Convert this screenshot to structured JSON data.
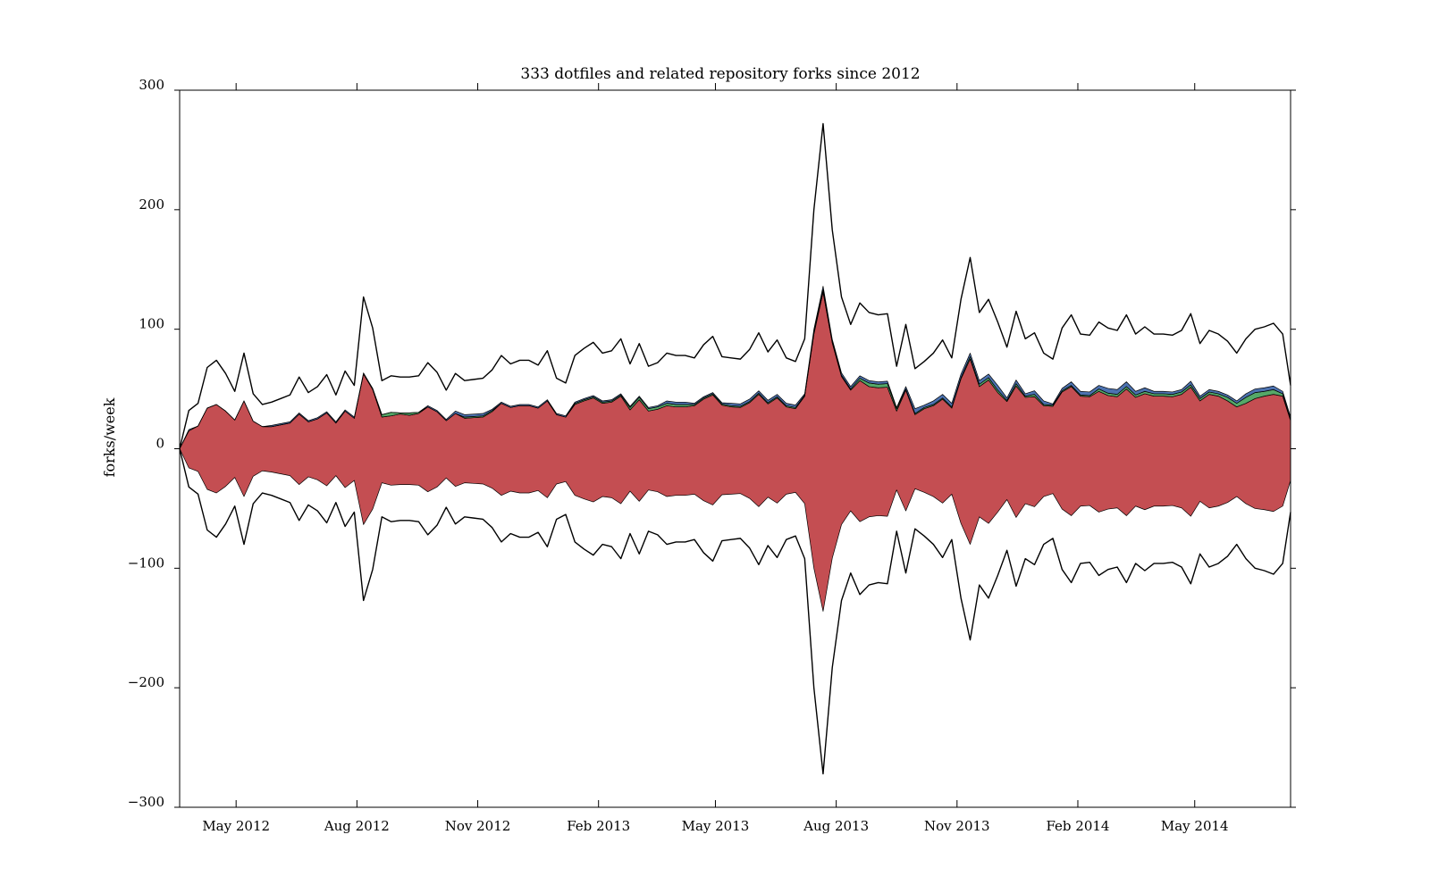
{
  "chart_data": {
    "type": "area",
    "subtype": "symmetric stream graph (stacked area mirrored about zero)",
    "title": "333 dotfiles and related repository forks since 2012",
    "xlabel": "",
    "ylabel": "forks/week",
    "ylim": [
      -300,
      300
    ],
    "yticks": [
      300,
      200,
      100,
      0,
      -100,
      -200,
      -300
    ],
    "ytick_labels": [
      "300",
      "200",
      "100",
      "0",
      "−100",
      "−200",
      "−300"
    ],
    "xlim": [
      "2012-03-19",
      "2014-07-13"
    ],
    "xticks": [
      "2012-05-01",
      "2012-08-01",
      "2012-11-01",
      "2013-02-01",
      "2013-05-01",
      "2013-08-01",
      "2013-11-01",
      "2014-02-01",
      "2014-05-01"
    ],
    "xtick_labels": [
      "May 2012",
      "Aug 2012",
      "Nov 2012",
      "Feb 2013",
      "May 2013",
      "Aug 2013",
      "Nov 2013",
      "Feb 2014",
      "May 2014"
    ],
    "grid": false,
    "legend": "none",
    "colors": {
      "major": "#c44e52",
      "minor_1": "#55a868",
      "minor_2": "#4c72b0",
      "outline": "#000000"
    },
    "x": [
      "2012-03-19",
      "2012-03-26",
      "2012-04-02",
      "2012-04-09",
      "2012-04-16",
      "2012-04-23",
      "2012-04-30",
      "2012-05-07",
      "2012-05-14",
      "2012-05-21",
      "2012-05-28",
      "2012-06-04",
      "2012-06-11",
      "2012-06-18",
      "2012-06-25",
      "2012-07-02",
      "2012-07-09",
      "2012-07-16",
      "2012-07-23",
      "2012-07-30",
      "2012-08-06",
      "2012-08-13",
      "2012-08-20",
      "2012-08-27",
      "2012-09-03",
      "2012-09-10",
      "2012-09-17",
      "2012-09-24",
      "2012-10-01",
      "2012-10-08",
      "2012-10-15",
      "2012-10-22",
      "2012-10-29",
      "2012-11-05",
      "2012-11-12",
      "2012-11-19",
      "2012-11-26",
      "2012-12-03",
      "2012-12-10",
      "2012-12-17",
      "2012-12-24",
      "2012-12-31",
      "2013-01-07",
      "2013-01-14",
      "2013-01-21",
      "2013-01-28",
      "2013-02-04",
      "2013-02-11",
      "2013-02-18",
      "2013-02-25",
      "2013-03-04",
      "2013-03-11",
      "2013-03-18",
      "2013-03-25",
      "2013-04-01",
      "2013-04-08",
      "2013-04-15",
      "2013-04-22",
      "2013-04-29",
      "2013-05-06",
      "2013-05-13",
      "2013-05-20",
      "2013-05-27",
      "2013-06-03",
      "2013-06-10",
      "2013-06-17",
      "2013-06-24",
      "2013-07-01",
      "2013-07-08",
      "2013-07-15",
      "2013-07-22",
      "2013-07-29",
      "2013-08-05",
      "2013-08-12",
      "2013-08-19",
      "2013-08-26",
      "2013-09-02",
      "2013-09-09",
      "2013-09-16",
      "2013-09-23",
      "2013-09-30",
      "2013-10-07",
      "2013-10-14",
      "2013-10-21",
      "2013-10-28",
      "2013-11-04",
      "2013-11-11",
      "2013-11-18",
      "2013-11-25",
      "2013-12-02",
      "2013-12-09",
      "2013-12-16",
      "2013-12-23",
      "2013-12-30",
      "2014-01-06",
      "2014-01-13",
      "2014-01-20",
      "2014-01-27",
      "2014-02-03",
      "2014-02-10",
      "2014-02-17",
      "2014-02-24",
      "2014-03-03",
      "2014-03-10",
      "2014-03-17",
      "2014-03-24",
      "2014-03-31",
      "2014-04-07",
      "2014-04-14",
      "2014-04-21",
      "2014-04-28",
      "2014-05-05",
      "2014-05-12",
      "2014-05-19",
      "2014-05-26",
      "2014-06-02",
      "2014-06-09",
      "2014-06-16",
      "2014-06-23",
      "2014-06-30",
      "2014-07-07",
      "2014-07-13"
    ],
    "upper_envelope": [
      0,
      32,
      38,
      68,
      74,
      63,
      48,
      80,
      46,
      37,
      39,
      42,
      45,
      60,
      47,
      52,
      62,
      45,
      65,
      53,
      127,
      101,
      57,
      61,
      60,
      60,
      61,
      72,
      64,
      49,
      63,
      57,
      58,
      59,
      66,
      78,
      71,
      74,
      74,
      70,
      82,
      59,
      55,
      78,
      84,
      89,
      80,
      82,
      92,
      71,
      88,
      69,
      72,
      80,
      78,
      78,
      76,
      87,
      94,
      77,
      76,
      75,
      83,
      97,
      81,
      91,
      76,
      73,
      92,
      200,
      272,
      183,
      127,
      104,
      122,
      114,
      112,
      113,
      69,
      104,
      67,
      73,
      80,
      91,
      76,
      125,
      160,
      114,
      125,
      106,
      85,
      115,
      92,
      97,
      80,
      75,
      101,
      112,
      96,
      95,
      106,
      101,
      99,
      112,
      96,
      102,
      96,
      96,
      95,
      99,
      113,
      88,
      99,
      96,
      90,
      80,
      92,
      100,
      102,
      105,
      96,
      53
    ],
    "series": [
      {
        "values": [
          0,
          31,
          38,
          68,
          74,
          63,
          48,
          80,
          46,
          37,
          38,
          41,
          44,
          59,
          46,
          51,
          61,
          44,
          64,
          52,
          126,
          100,
          55,
          58,
          59,
          58,
          60,
          71,
          63,
          48,
          61,
          54,
          55,
          56,
          64,
          77,
          70,
          73,
          73,
          69,
          81,
          58,
          54,
          76,
          82,
          87,
          78,
          80,
          90,
          68,
          85,
          66,
          69,
          76,
          74,
          74,
          74,
          85,
          92,
          75,
          73,
          72,
          80,
          94,
          78,
          88,
          73,
          70,
          90,
          196,
          267,
          180,
          124,
          101,
          118,
          109,
          107,
          108,
          66,
          101,
          62,
          70,
          76,
          87,
          72,
          121,
          155,
          109,
          120,
          100,
          82,
          110,
          89,
          92,
          76,
          73,
          98,
          108,
          92,
          91,
          101,
          95,
          93,
          106,
          91,
          97,
          92,
          92,
          91,
          95,
          108,
          84,
          95,
          92,
          85,
          75,
          84,
          92,
          95,
          98,
          92,
          50
        ]
      },
      {
        "values": [
          0,
          0,
          0,
          0,
          0,
          0,
          0,
          0,
          0,
          0,
          0,
          0,
          0,
          0,
          0,
          0,
          0,
          0,
          0,
          0,
          0,
          1,
          2,
          3,
          1,
          2,
          1,
          0,
          0,
          0,
          0,
          1,
          1,
          1,
          1,
          0,
          0,
          0,
          0,
          0,
          0,
          0,
          0,
          1,
          1,
          1,
          1,
          1,
          1,
          2,
          2,
          2,
          2,
          2,
          2,
          2,
          1,
          1,
          1,
          1,
          1,
          1,
          1,
          1,
          1,
          1,
          1,
          1,
          1,
          2,
          2,
          1,
          1,
          1,
          2,
          3,
          3,
          3,
          2,
          1,
          1,
          1,
          1,
          1,
          1,
          1,
          2,
          2,
          2,
          2,
          1,
          2,
          1,
          2,
          1,
          1,
          1,
          1,
          1,
          1,
          2,
          2,
          2,
          2,
          2,
          2,
          2,
          2,
          2,
          2,
          2,
          2,
          2,
          2,
          3,
          3,
          5,
          5,
          4,
          4,
          2,
          1
        ]
      },
      {
        "values": [
          0,
          1,
          0,
          0,
          0,
          0,
          0,
          0,
          0,
          0,
          1,
          1,
          1,
          1,
          1,
          1,
          1,
          1,
          1,
          1,
          1,
          0,
          0,
          0,
          0,
          0,
          0,
          1,
          1,
          1,
          2,
          2,
          2,
          2,
          1,
          1,
          1,
          1,
          1,
          1,
          1,
          1,
          1,
          1,
          1,
          1,
          1,
          1,
          1,
          1,
          1,
          1,
          1,
          2,
          2,
          2,
          1,
          1,
          1,
          1,
          2,
          2,
          2,
          2,
          2,
          2,
          2,
          2,
          1,
          2,
          3,
          2,
          2,
          2,
          2,
          2,
          2,
          2,
          1,
          2,
          4,
          2,
          3,
          3,
          3,
          3,
          3,
          3,
          3,
          4,
          2,
          3,
          2,
          3,
          3,
          1,
          2,
          3,
          3,
          3,
          3,
          4,
          4,
          4,
          3,
          3,
          2,
          2,
          2,
          2,
          3,
          2,
          2,
          2,
          2,
          2,
          3,
          3,
          3,
          3,
          2,
          2
        ]
      }
    ]
  }
}
